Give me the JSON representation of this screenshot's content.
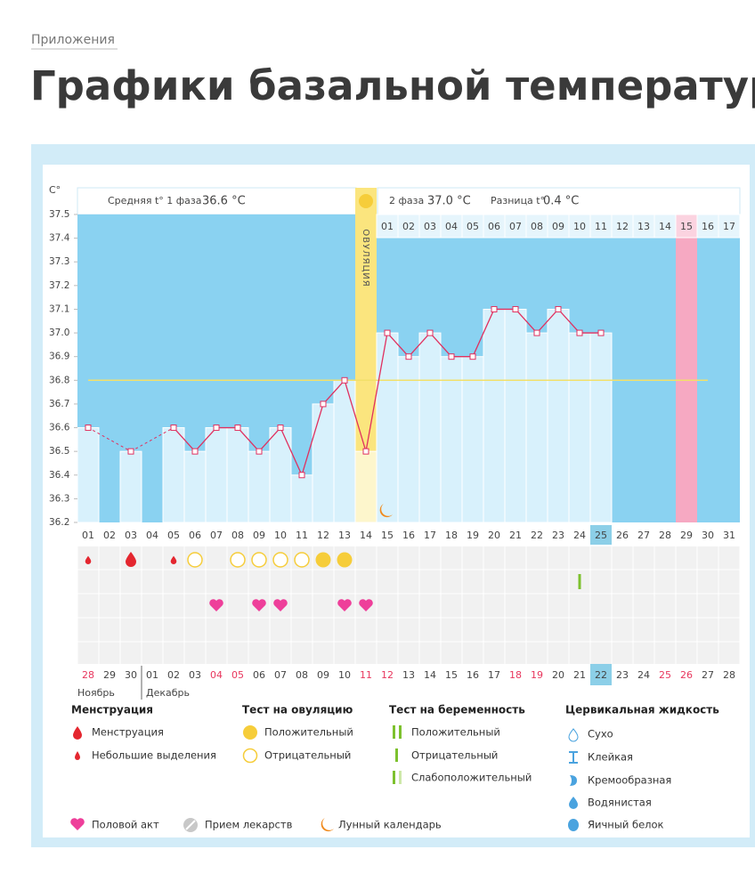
{
  "header": {
    "breadcrumb": "Приложения",
    "title": "Графики базальной температуры"
  },
  "chart_data": {
    "type": "line",
    "y_unit": "C°",
    "phase1_label": "Средняя t° 1 фаза",
    "phase1_avg": "36.6 °C",
    "phase2_label": "2 фаза",
    "phase2_avg": "37.0 °C",
    "diff_label": "Разница t°",
    "diff": "0.4 °C",
    "ovulation_label": "ОВУЛЯЦИЯ",
    "ovulation_day": 14,
    "categories": [
      "01",
      "02",
      "03",
      "04",
      "05",
      "06",
      "07",
      "08",
      "09",
      "10",
      "11",
      "12",
      "13",
      "14",
      "15",
      "16",
      "17",
      "18",
      "19",
      "20",
      "21",
      "22",
      "23",
      "24",
      "25",
      "26",
      "27",
      "28",
      "29",
      "30",
      "31"
    ],
    "values": [
      36.6,
      null,
      36.5,
      null,
      36.6,
      36.5,
      36.6,
      36.6,
      36.5,
      36.6,
      36.4,
      36.7,
      36.8,
      36.5,
      37,
      36.9,
      37,
      36.9,
      36.9,
      37.1,
      37.1,
      37,
      37.1,
      37,
      37,
      null,
      null,
      null,
      null,
      null,
      null
    ],
    "color": "#e0305f",
    "ylim": [
      36.2,
      37.5
    ],
    "yticks": [
      36.2,
      36.3,
      36.4,
      36.5,
      36.6,
      36.7,
      36.8,
      36.9,
      {
        "value": 37,
        "label": "37.0"
      },
      37.1,
      37.2,
      37.3,
      37.4,
      37.5
    ],
    "cover_line": 36.8,
    "phase2_days": [
      "01",
      "02",
      "03",
      "04",
      "05",
      "06",
      "07",
      "08",
      "09",
      "10",
      "11",
      "12",
      "13",
      "14",
      "15",
      "16",
      "17"
    ],
    "highlight_day": 25,
    "expected_period_day": 29,
    "calendar_dates": [
      "28",
      "29",
      "30",
      "01",
      "02",
      "03",
      "04",
      "05",
      "06",
      "07",
      "08",
      "09",
      "10",
      "11",
      "12",
      "13",
      "14",
      "15",
      "16",
      "17",
      "18",
      "19",
      "20",
      "21",
      "22",
      "23",
      "24",
      "25",
      "26",
      "27",
      "28"
    ],
    "weekend_color": "#e8365d",
    "weekends": [
      0,
      6,
      7,
      13,
      14,
      20,
      21,
      27,
      28
    ],
    "months": [
      "Ноябрь",
      "Декабрь"
    ],
    "events": {
      "menstruation": [
        3
      ],
      "light_bleeding": [
        1,
        5
      ],
      "ovulation_positive": [
        12,
        13
      ],
      "ovulation_negative": [
        6,
        8,
        9,
        10,
        11
      ],
      "pregnancy_negative": [
        24
      ],
      "sex": [
        7,
        9,
        10,
        13,
        14
      ],
      "moon": [
        15
      ]
    }
  },
  "legend": {
    "menstruation": {
      "title": "Менструация",
      "items": [
        "Менструация",
        "Небольшие выделения"
      ]
    },
    "ovulation_test": {
      "title": "Тест на овуляцию",
      "items": [
        "Положительный",
        "Отрицательный"
      ]
    },
    "pregnancy_test": {
      "title": "Тест на беременность",
      "items": [
        "Положительный",
        "Отрицательный",
        "Слабоположительный"
      ]
    },
    "cervical": {
      "title": "Цервикальная жидкость",
      "items": [
        "Сухо",
        "Клейкая",
        "Кремообразная",
        "Водянистая",
        "Яичный белок"
      ]
    },
    "other": [
      "Половой акт",
      "Прием лекарств",
      "Лунный календарь"
    ]
  }
}
